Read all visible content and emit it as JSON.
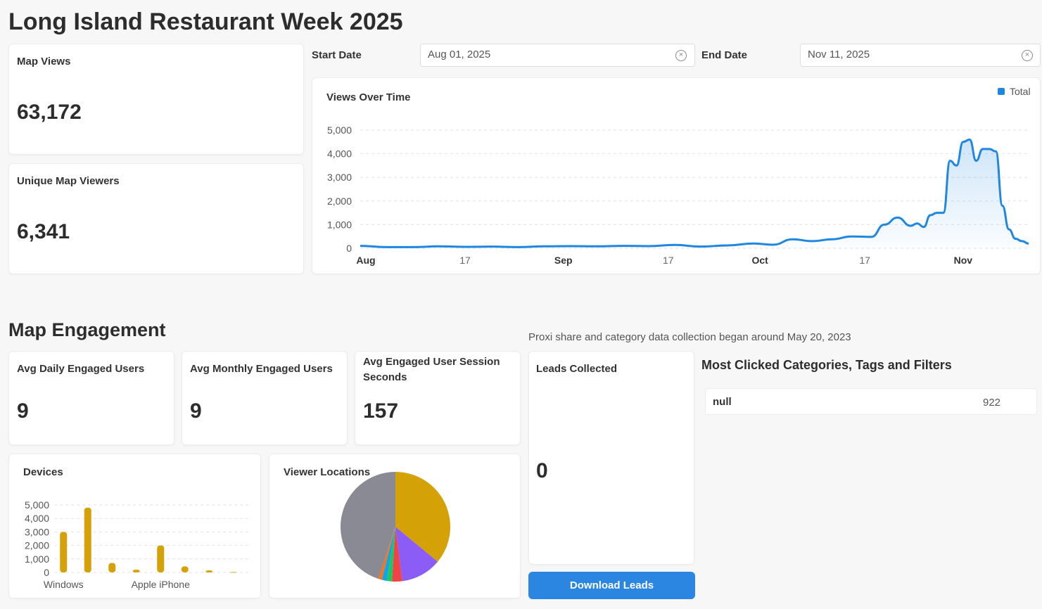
{
  "page": {
    "title": "Long Island Restaurant Week 2025"
  },
  "colors": {
    "accent": "#2a86e0",
    "devices_bar": "#d4a106",
    "line": "#1f87e0"
  },
  "kpis": {
    "map_views": {
      "label": "Map Views",
      "value": "63,172"
    },
    "unique_viewers": {
      "label": "Unique Map Viewers",
      "value": "6,341"
    }
  },
  "filters": {
    "start": {
      "label": "Start Date",
      "value": "Aug 01, 2025"
    },
    "end": {
      "label": "End Date",
      "value": "Nov 11, 2025"
    }
  },
  "engagement": {
    "title": "Map Engagement",
    "note": "Proxi share and category data collection began around May 20, 2023",
    "avg_daily": {
      "label": "Avg Daily Engaged Users",
      "value": "9"
    },
    "avg_monthly": {
      "label": "Avg Monthly Engaged Users",
      "value": "9"
    },
    "avg_session": {
      "label": "Avg Engaged User Session Seconds",
      "value": "157"
    },
    "leads": {
      "label": "Leads Collected",
      "value": "0",
      "button": "Download Leads"
    },
    "categories": {
      "title": "Most Clicked Categories, Tags and Filters",
      "rows": [
        {
          "name": "null",
          "count": "922"
        }
      ]
    }
  },
  "chart_data": [
    {
      "type": "area",
      "title": "Views Over Time",
      "legend": [
        "Total"
      ],
      "legend_position": "top-right",
      "x_tick_labels": [
        "Aug",
        "17",
        "Sep",
        "17",
        "Oct",
        "17",
        "Nov"
      ],
      "y_ticks": [
        "0",
        "1,000",
        "2,000",
        "3,000",
        "4,000",
        "5,000"
      ],
      "ylim": [
        0,
        5000
      ],
      "xlim": [
        "2025-08-01",
        "2025-11-11"
      ],
      "grid": true,
      "series": [
        {
          "name": "Total",
          "x": [
            "2025-08-01",
            "2025-08-05",
            "2025-08-09",
            "2025-08-13",
            "2025-08-17",
            "2025-08-21",
            "2025-08-25",
            "2025-08-29",
            "2025-09-02",
            "2025-09-06",
            "2025-09-10",
            "2025-09-14",
            "2025-09-18",
            "2025-09-22",
            "2025-09-26",
            "2025-09-30",
            "2025-10-03",
            "2025-10-06",
            "2025-10-09",
            "2025-10-12",
            "2025-10-15",
            "2025-10-18",
            "2025-10-20",
            "2025-10-22",
            "2025-10-24",
            "2025-10-25",
            "2025-10-26",
            "2025-10-27",
            "2025-10-28",
            "2025-10-29",
            "2025-10-30",
            "2025-10-31",
            "2025-11-01",
            "2025-11-02",
            "2025-11-03",
            "2025-11-04",
            "2025-11-05",
            "2025-11-06",
            "2025-11-07",
            "2025-11-08",
            "2025-11-09",
            "2025-11-10",
            "2025-11-11"
          ],
          "values": [
            100,
            50,
            50,
            80,
            60,
            70,
            50,
            80,
            90,
            80,
            100,
            90,
            140,
            70,
            120,
            200,
            150,
            380,
            300,
            380,
            500,
            480,
            1000,
            1300,
            950,
            1050,
            900,
            1400,
            1500,
            1500,
            3700,
            3500,
            4500,
            4600,
            3700,
            4200,
            4200,
            4100,
            1800,
            800,
            400,
            300,
            200
          ]
        }
      ]
    },
    {
      "type": "bar",
      "title": "Devices",
      "categories": [
        "Windows",
        "",
        "",
        "",
        "Apple iPhone",
        "",
        "",
        ""
      ],
      "x_tick_labels": [
        "Windows",
        "Apple iPhone"
      ],
      "y_ticks": [
        "0",
        "1,000",
        "2,000",
        "3,000",
        "4,000",
        "5,000"
      ],
      "ylim": [
        0,
        5000
      ],
      "grid": true,
      "values": [
        3000,
        4800,
        700,
        200,
        2000,
        450,
        150,
        30
      ]
    },
    {
      "type": "pie",
      "title": "Viewer Locations",
      "slices": [
        {
          "value": 36,
          "color": "#d4a106"
        },
        {
          "value": 12,
          "color": "#8b5cf6"
        },
        {
          "value": 3,
          "color": "#ef4444"
        },
        {
          "value": 1.5,
          "color": "#22c55e"
        },
        {
          "value": 1.5,
          "color": "#0ea5e9"
        },
        {
          "value": 1,
          "color": "#f97316"
        },
        {
          "value": 45,
          "color": "#8a8a95"
        }
      ]
    }
  ]
}
